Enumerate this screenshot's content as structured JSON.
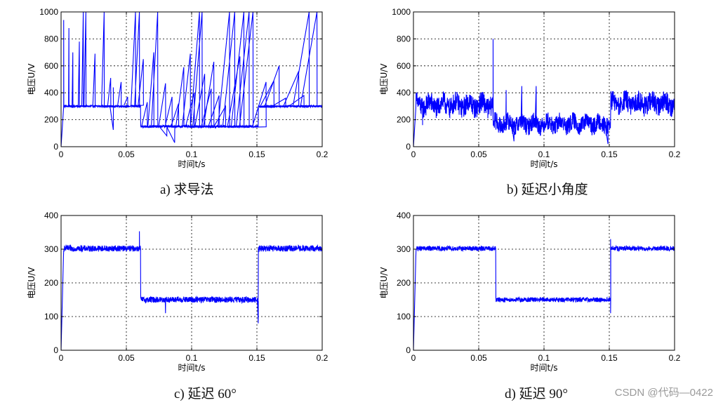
{
  "colors": {
    "series": "#0000ff",
    "axis": "#000000",
    "grid": "#000000",
    "watermark": "#9a9a9a"
  },
  "chart_data": [
    {
      "type": "line",
      "caption": "a)  求导法",
      "xlabel": "时间t/s",
      "ylabel": "电压U/V",
      "xlim": [
        0,
        0.2
      ],
      "ylim": [
        0,
        1000
      ],
      "xticks": [
        "0",
        "0.05",
        "0.1",
        "0.15",
        "0.2"
      ],
      "yticks": [
        "0",
        "200",
        "400",
        "600",
        "800",
        "1000"
      ],
      "grid": true,
      "series": [
        {
          "segments": [
            {
              "x": [
                0,
                0.061
              ],
              "level": 300,
              "noise": 8
            },
            {
              "x": [
                0.061,
                0.151
              ],
              "level": 150,
              "noise": 8
            },
            {
              "x": [
                0.151,
                0.2
              ],
              "level": 300,
              "noise": 8
            }
          ],
          "spikes": [
            [
              0.002,
              940
            ],
            [
              0.006,
              880
            ],
            [
              0.009,
              700
            ],
            [
              0.014,
              780
            ],
            [
              0.017,
              1000
            ],
            [
              0.019,
              1000
            ],
            [
              0.026,
              690
            ],
            [
              0.033,
              1000
            ],
            [
              0.038,
              510
            ],
            [
              0.04,
              440
            ],
            [
              0.046,
              480
            ],
            [
              0.051,
              370
            ],
            [
              0.057,
              1000
            ],
            [
              0.06,
              1000
            ],
            [
              0.063,
              650
            ],
            [
              0.066,
              330
            ],
            [
              0.071,
              700
            ],
            [
              0.074,
              1000
            ],
            [
              0.08,
              470
            ],
            [
              0.085,
              370
            ],
            [
              0.09,
              320
            ],
            [
              0.094,
              590
            ],
            [
              0.099,
              690
            ],
            [
              0.102,
              400
            ],
            [
              0.106,
              1000
            ],
            [
              0.108,
              1000
            ],
            [
              0.11,
              540
            ],
            [
              0.115,
              430
            ],
            [
              0.117,
              630
            ],
            [
              0.121,
              380
            ],
            [
              0.126,
              300
            ],
            [
              0.129,
              1000
            ],
            [
              0.133,
              1000
            ],
            [
              0.137,
              670
            ],
            [
              0.14,
              1000
            ],
            [
              0.144,
              1000
            ],
            [
              0.147,
              1000
            ],
            [
              0.157,
              480
            ],
            [
              0.163,
              490
            ],
            [
              0.167,
              600
            ],
            [
              0.172,
              360
            ],
            [
              0.182,
              560
            ],
            [
              0.186,
              380
            ],
            [
              0.19,
              1000
            ],
            [
              0.196,
              1000
            ]
          ],
          "dips": [
            [
              0.04,
              125
            ],
            [
              0.081,
              80
            ],
            [
              0.087,
              30
            ]
          ]
        }
      ]
    },
    {
      "type": "line",
      "caption": "b)  延迟小角度",
      "xlabel": "时间t/s",
      "ylabel": "电压U/V",
      "xlim": [
        0,
        0.2
      ],
      "ylim": [
        0,
        1000
      ],
      "xticks": [
        "0",
        "0.05",
        "0.1",
        "0.15",
        "0.2"
      ],
      "yticks": [
        "0",
        "200",
        "400",
        "600",
        "800",
        "1000"
      ],
      "grid": true,
      "series": [
        {
          "segments": [
            {
              "x": [
                0,
                0.061
              ],
              "level": 310,
              "noise": 75
            },
            {
              "x": [
                0.061,
                0.151
              ],
              "level": 170,
              "noise": 65
            },
            {
              "x": [
                0.151,
                0.2
              ],
              "level": 320,
              "noise": 75
            }
          ],
          "spikes": [
            [
              0.061,
              800
            ],
            [
              0.071,
              420
            ],
            [
              0.083,
              450
            ],
            [
              0.094,
              450
            ]
          ],
          "dips": [
            [
              0.007,
              160
            ],
            [
              0.077,
              40
            ],
            [
              0.149,
              20
            ]
          ]
        }
      ]
    },
    {
      "type": "line",
      "caption": "c)  延迟 60°",
      "xlabel": "时间t/s",
      "ylabel": "电压U/V",
      "xlim": [
        0,
        0.2
      ],
      "ylim": [
        0,
        400
      ],
      "xticks": [
        "0",
        "0.05",
        "0.1",
        "0.15",
        "0.2"
      ],
      "yticks": [
        "0",
        "100",
        "200",
        "300",
        "400"
      ],
      "grid": true,
      "series": [
        {
          "segments": [
            {
              "x": [
                0,
                0.061
              ],
              "level": 302,
              "noise": 9
            },
            {
              "x": [
                0.061,
                0.151
              ],
              "level": 150,
              "noise": 9
            },
            {
              "x": [
                0.151,
                0.2
              ],
              "level": 302,
              "noise": 9
            }
          ],
          "spikes": [
            [
              0.06,
              353
            ]
          ],
          "dips": [
            [
              0.08,
              110
            ],
            [
              0.151,
              80
            ]
          ]
        }
      ]
    },
    {
      "type": "line",
      "caption": "d)  延迟 90°",
      "xlabel": "时间t/s",
      "ylabel": "电压U/V",
      "xlim": [
        0,
        0.2
      ],
      "ylim": [
        0,
        400
      ],
      "xticks": [
        "0",
        "0.05",
        "0.1",
        "0.15",
        "0.2"
      ],
      "yticks": [
        "0",
        "100",
        "200",
        "300",
        "400"
      ],
      "grid": true,
      "series": [
        {
          "segments": [
            {
              "x": [
                0,
                0.063
              ],
              "level": 302,
              "noise": 7
            },
            {
              "x": [
                0.063,
                0.151
              ],
              "level": 150,
              "noise": 7
            },
            {
              "x": [
                0.151,
                0.2
              ],
              "level": 302,
              "noise": 7
            }
          ],
          "spikes": [
            [
              0.151,
              330
            ]
          ],
          "dips": [
            [
              0.151,
              110
            ]
          ]
        }
      ]
    }
  ],
  "watermark": "CSDN @代码—0422"
}
